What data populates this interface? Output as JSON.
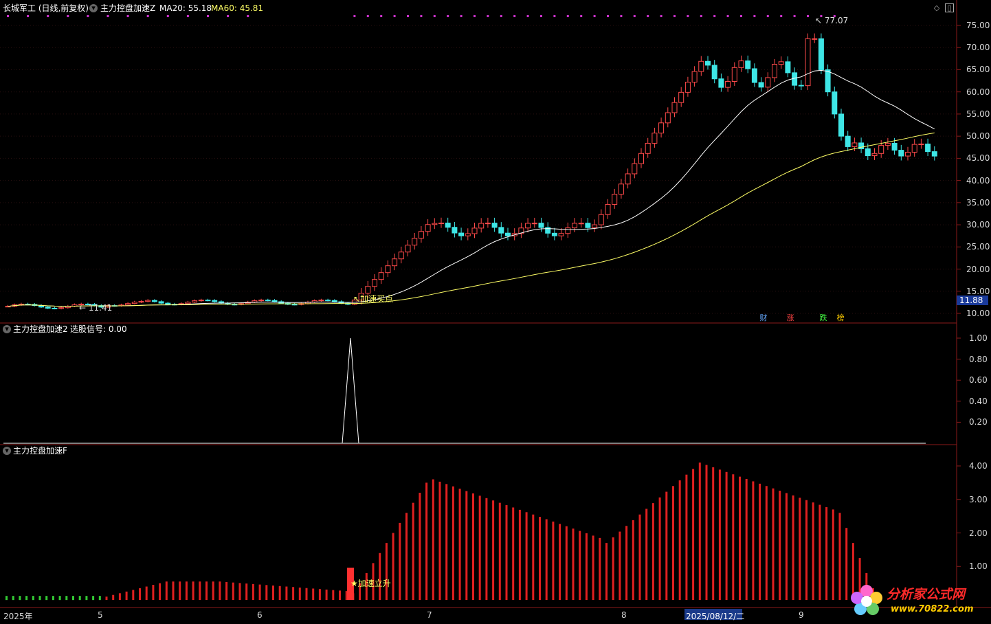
{
  "header": {
    "stock_title": "长城军工 (日线,前复权)",
    "indicator_name": "主力控盘加速Z",
    "ma20_label": "MA20: 55.18",
    "ma60_label": "MA60: 45.81",
    "colors": {
      "ma20": "#ffffff",
      "ma60": "#ffff66",
      "title": "#ffffff"
    }
  },
  "main_panel": {
    "price_axis": [
      "75.00",
      "70.00",
      "65.00",
      "60.00",
      "55.00",
      "50.00",
      "45.00",
      "40.00",
      "35.00",
      "30.00",
      "25.00",
      "20.00",
      "15.00",
      "10.00"
    ],
    "current_price_tag": "11.88",
    "high_marker": "77.07",
    "low_marker": "11.41",
    "buy_point_label": "加速买点",
    "event_tags": [
      {
        "text": "财",
        "color": "#66aaff"
      },
      {
        "text": "涨",
        "color": "#ff4444"
      },
      {
        "text": "跌",
        "color": "#44ff44"
      },
      {
        "text": "榜",
        "color": "#ffcc00"
      }
    ]
  },
  "panel2": {
    "title": "主力控盘加速2",
    "signal_label": "选股信号: 0.00",
    "axis": [
      "1.00",
      "0.80",
      "0.60",
      "0.40",
      "0.20"
    ]
  },
  "panel3": {
    "title": "主力控盘加速F",
    "axis": [
      "4.00",
      "3.00",
      "2.00",
      "1.00"
    ],
    "rise_label": "加速立升"
  },
  "time_axis": {
    "labels": [
      "2025年",
      "5",
      "6",
      "7",
      "8",
      "9"
    ],
    "cursor_date": "2025/08/12/二"
  },
  "watermark": {
    "title": "分析家公式网",
    "url": "www.70822.com"
  }
}
